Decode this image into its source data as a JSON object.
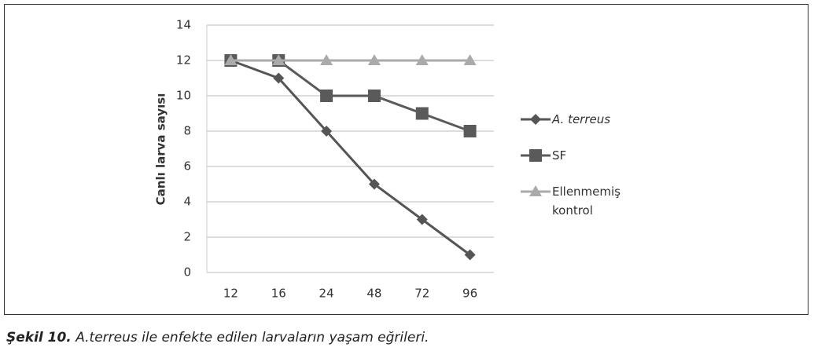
{
  "chart_data": {
    "type": "line",
    "y_label": "Canlı larva sayısı",
    "categories": [
      "12",
      "16",
      "24",
      "48",
      "72",
      "96"
    ],
    "series": [
      {
        "name": "A. terreus",
        "color": "#555555",
        "marker": "diamond",
        "values": [
          12,
          11,
          8,
          5,
          3,
          1
        ]
      },
      {
        "name": "SF",
        "color": "#5a5a5a",
        "marker": "square",
        "values": [
          12,
          12,
          10,
          10,
          9,
          8
        ]
      },
      {
        "name": "Ellenmemiş kontrol",
        "color": "#aaaaaa",
        "marker": "triangle",
        "values": [
          12,
          12,
          12,
          12,
          12,
          12
        ]
      }
    ],
    "ylim": [
      0,
      14
    ],
    "yticks": [
      0,
      2,
      4,
      6,
      8,
      10,
      12,
      14
    ],
    "grid": true,
    "legend": "right"
  },
  "caption": {
    "label": "Şekil 10.",
    "text": "A.terreus ile enfekte edilen larvaların yaşam eğrileri."
  }
}
